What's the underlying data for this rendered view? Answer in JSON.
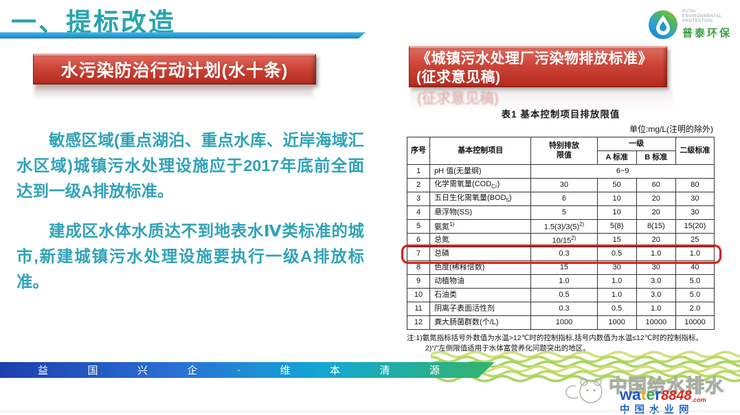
{
  "header": {
    "title": "一、提标改造"
  },
  "logo": {
    "en_lines": [
      "PUTAI",
      "ENVIRONMENTAL",
      "PROTECTION"
    ],
    "cn": "普泰环保"
  },
  "left_panel": {
    "banner": "水污染防治行动计划(水十条)",
    "paragraphs": [
      "敏感区域(重点湖泊、重点水库、近岸海域汇水区域)城镇污水处理设施应于2017年底前全面达到一级A排放标准。",
      "建成区水体水质达不到地表水Ⅳ类标准的城市,新建城镇污水处理设施要执行一级A排放标准。"
    ]
  },
  "right_panel": {
    "banner_line1": "《城镇污水处理厂污染物排放标准》",
    "banner_line2": "(征求意见稿)",
    "table_title": "表1 基本控制项目排放限值",
    "unit": "单位:mg/L(注明的除外)"
  },
  "table": {
    "col_headers": {
      "no": "序号",
      "item": "基本控制项目",
      "special": "特别排放限值",
      "level1": "一级",
      "a": "A 标准",
      "b": "B 标准",
      "secondary": "二级标准"
    },
    "rows": [
      {
        "num": "1",
        "item": "pH 值(无量纲)",
        "span": "6~9"
      },
      {
        "num": "2",
        "item": "化学需氧量(COD",
        "sub": "Cr",
        "tail": ")",
        "special": "30",
        "a": "50",
        "b": "60",
        "sec": "80"
      },
      {
        "num": "3",
        "item": "五日生化需氧量(BOD",
        "sub": "5",
        "tail": ")",
        "special": "6",
        "a": "10",
        "b": "20",
        "sec": "30"
      },
      {
        "num": "4",
        "item": "悬浮物(SS)",
        "special": "5",
        "a": "10",
        "b": "20",
        "sec": "30"
      },
      {
        "num": "5",
        "item": "氨氮",
        "sup": "1)",
        "special": "1.5(3)/3(5)",
        "special_sup": "2)",
        "a": "5(8)",
        "b": "8(15)",
        "sec": "15(20)"
      },
      {
        "num": "6",
        "item": "总氮",
        "special": "10/15",
        "special_sup": "2)",
        "a": "15",
        "b": "20",
        "sec": "25"
      },
      {
        "num": "7",
        "item": "总磷",
        "special": "0.3",
        "a": "0.5",
        "b": "1.0",
        "sec": "1.0",
        "highlight": true
      },
      {
        "num": "8",
        "item": "色度(稀释倍数)",
        "special": "15",
        "a": "30",
        "b": "30",
        "sec": "40"
      },
      {
        "num": "9",
        "item": "动植物油",
        "special": "1.0",
        "a": "1.0",
        "b": "3.0",
        "sec": "5.0"
      },
      {
        "num": "10",
        "item": "石油类",
        "special": "0.5",
        "a": "1.0",
        "b": "3.0",
        "sec": "5.0"
      },
      {
        "num": "11",
        "item": "阴离子表面活性剂",
        "special": "0.3",
        "a": "0.5",
        "b": "1.0",
        "sec": "2.0"
      },
      {
        "num": "12",
        "item": "粪大肠菌群数(个/L)",
        "special": "1000",
        "a": "1000",
        "b": "10000",
        "sec": "10000"
      }
    ],
    "notes": [
      "注:1)氨氮指标括号外数值为水温>12℃时的控制指标,括号内数值为水温≤12℃时的控制指标。",
      "2)“/”左侧限值适用于水体富营养化问题突出的地区。"
    ]
  },
  "footer": {
    "slogan": [
      "益",
      "国",
      "兴",
      "企",
      "·",
      "维",
      "本",
      "清",
      "源"
    ]
  },
  "watermark": {
    "title": "中国给水排水",
    "water_letters": [
      {
        "ch": "w",
        "color": "#2057c0"
      },
      {
        "ch": "a",
        "color": "#2057c0"
      },
      {
        "ch": "t",
        "color": "#f4a71d"
      },
      {
        "ch": "e",
        "color": "#2fa84f"
      },
      {
        "ch": "r",
        "color": "#2057c0"
      }
    ],
    "num": "8848",
    "tld": ".com",
    "site": "中国水业网"
  },
  "colors": {
    "title_teal": "#27a4ae",
    "body_teal": "#2fa2b8",
    "banner_red": "#c0392b",
    "title_bar_blue": "#2196cd",
    "highlight_red": "#cf2218",
    "footer_gradient": [
      "#1c3fae",
      "#2a6fd4",
      "#13a7d4",
      "#33b46a"
    ],
    "wave_greens": [
      "#cde078",
      "#b5d75f",
      "#a4d45c"
    ],
    "logo_green": "#3fa245",
    "site_blue": "#1f63c8",
    "brand_red": "#e2231a"
  }
}
